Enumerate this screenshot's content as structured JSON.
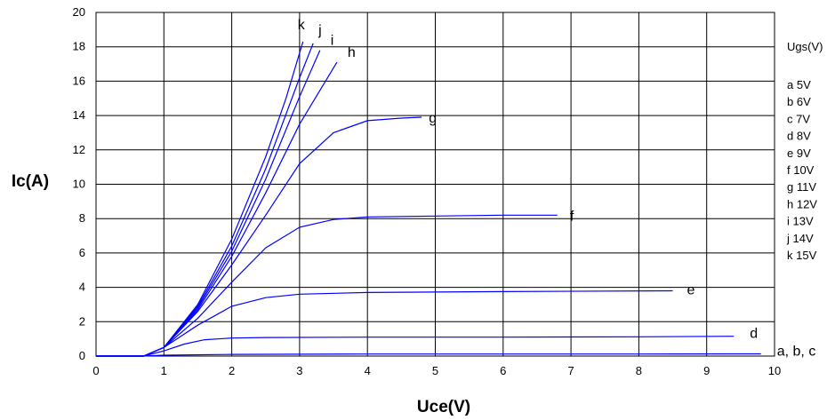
{
  "chart_data": {
    "type": "line",
    "xlabel": "Uce(V)",
    "ylabel": "Ic(A)",
    "xlim": [
      0,
      10
    ],
    "ylim": [
      0,
      20
    ],
    "x_ticks": [
      "0",
      "1",
      "2",
      "3",
      "4",
      "5",
      "6",
      "7",
      "8",
      "9",
      "10"
    ],
    "y_ticks": [
      "0",
      "2",
      "4",
      "6",
      "8",
      "10",
      "12",
      "14",
      "16",
      "18",
      "20"
    ],
    "grid": true,
    "line_color": "#0000ff",
    "legend": {
      "title": "Ugs(V)",
      "placement": "right",
      "items": [
        "a  5V",
        "b  6V",
        "c  7V",
        "d  8V",
        "e  9V",
        "f  10V",
        "g  11V",
        "h  12V",
        "i  13V",
        "j  14V",
        "k  15V"
      ]
    },
    "series": [
      {
        "name": "a, b, c",
        "x": [
          0,
          0.7,
          1.0,
          2.0,
          4.0,
          6.0,
          8.0,
          9.8
        ],
        "y": [
          0,
          0,
          0.05,
          0.1,
          0.12,
          0.12,
          0.12,
          0.13
        ]
      },
      {
        "name": "d",
        "x": [
          0,
          0.7,
          1.0,
          1.3,
          1.6,
          2.0,
          2.5,
          4.0,
          6.0,
          8.0,
          9.4
        ],
        "y": [
          0,
          0,
          0.3,
          0.7,
          0.95,
          1.05,
          1.08,
          1.1,
          1.1,
          1.12,
          1.15
        ]
      },
      {
        "name": "e",
        "x": [
          0,
          0.7,
          1.0,
          1.5,
          2.0,
          2.5,
          3.0,
          4.0,
          6.0,
          8.5
        ],
        "y": [
          0,
          0,
          0.5,
          1.8,
          2.9,
          3.4,
          3.6,
          3.7,
          3.75,
          3.8
        ]
      },
      {
        "name": "f",
        "x": [
          0,
          0.7,
          1.0,
          1.5,
          2.0,
          2.5,
          3.0,
          3.5,
          4.0,
          5.0,
          6.0,
          6.8
        ],
        "y": [
          0,
          0,
          0.5,
          2.2,
          4.3,
          6.3,
          7.5,
          7.95,
          8.1,
          8.15,
          8.2,
          8.2
        ]
      },
      {
        "name": "g",
        "x": [
          0,
          0.7,
          1.0,
          1.5,
          2.0,
          2.5,
          3.0,
          3.5,
          4.0,
          4.5,
          4.8
        ],
        "y": [
          0,
          0,
          0.5,
          2.6,
          5.3,
          8.2,
          11.2,
          13.0,
          13.7,
          13.85,
          13.9
        ]
      },
      {
        "name": "h",
        "x": [
          0,
          0.7,
          1.0,
          1.5,
          2.0,
          2.5,
          3.0,
          3.55
        ],
        "y": [
          0,
          0,
          0.5,
          2.7,
          5.8,
          9.5,
          13.5,
          17.1
        ]
      },
      {
        "name": "i",
        "x": [
          0,
          0.7,
          1.0,
          1.5,
          2.0,
          2.5,
          3.0,
          3.3
        ],
        "y": [
          0,
          0,
          0.5,
          2.8,
          6.1,
          10.3,
          15.1,
          17.8
        ]
      },
      {
        "name": "j",
        "x": [
          0,
          0.7,
          1.0,
          1.5,
          2.0,
          2.5,
          3.0,
          3.2
        ],
        "y": [
          0,
          0,
          0.5,
          2.9,
          6.4,
          10.9,
          16.2,
          18.2
        ]
      },
      {
        "name": "k",
        "x": [
          0,
          0.7,
          1.0,
          1.5,
          2.0,
          2.5,
          2.8,
          3.05
        ],
        "y": [
          0,
          0,
          0.5,
          3.0,
          6.8,
          11.6,
          15.0,
          18.3
        ]
      }
    ]
  }
}
